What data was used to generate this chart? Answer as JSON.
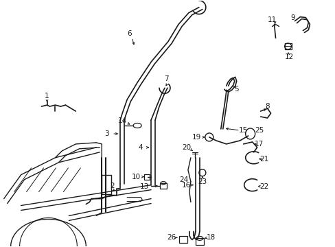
{
  "bg_color": "#ffffff",
  "line_color": "#1a1a1a",
  "lw": 1.0
}
